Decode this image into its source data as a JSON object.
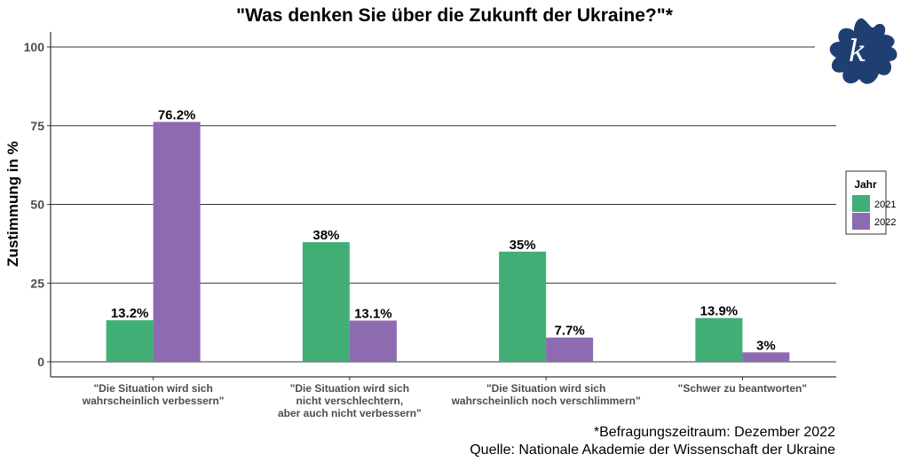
{
  "chart_data": {
    "type": "bar",
    "title": "\"Was denken Sie über die Zukunft der Ukraine?\"*",
    "xlabel": "",
    "ylabel": "Zustimmung in %",
    "ylim": [
      0,
      100
    ],
    "yticks": [
      "0",
      "25",
      "50",
      "75",
      "100"
    ],
    "categories": [
      [
        "\"Die Situation wird sich",
        "wahrscheinlich verbessern\""
      ],
      [
        "\"Die Situation wird sich",
        "nicht verschlechtern,",
        "aber auch nicht verbessern\""
      ],
      [
        "\"Die Situation wird sich",
        "wahrscheinlich noch verschlimmern\""
      ],
      [
        "\"Schwer zu beantworten\""
      ]
    ],
    "series": [
      {
        "name": "2021",
        "color": "#41AE76",
        "values": [
          13.2,
          38,
          35,
          13.9
        ],
        "labels": [
          "13.2%",
          "38%",
          "35%",
          "13.9%"
        ]
      },
      {
        "name": "2022",
        "color": "#8C6BB1",
        "values": [
          76.2,
          13.1,
          7.7,
          3
        ],
        "labels": [
          "76.2%",
          "13.1%",
          "7.7%",
          "3%"
        ]
      }
    ],
    "legend": {
      "title": "Jahr",
      "placement": "right"
    },
    "grid": true,
    "caption": [
      "*Befragungszeitraum: Dezember 2022",
      "Quelle: Nationale Akademie der Wissenschaft der Ukraine"
    ]
  },
  "logo": {
    "text": "k.",
    "color": "#1F3F73"
  }
}
